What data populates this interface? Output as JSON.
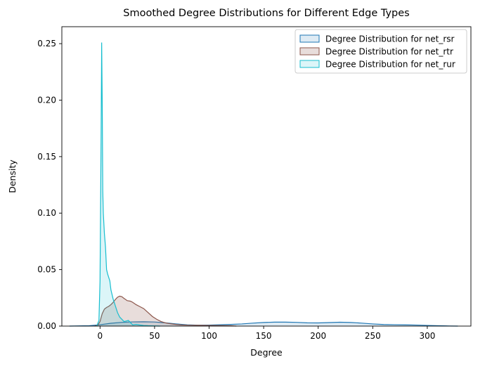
{
  "chart_data": {
    "type": "area",
    "title": "Smoothed Degree Distributions for Different Edge Types",
    "xlabel": "Degree",
    "ylabel": "Density",
    "xlim": [
      -35,
      340
    ],
    "ylim": [
      0,
      0.265
    ],
    "xticks": [
      0,
      50,
      100,
      150,
      200,
      250,
      300
    ],
    "yticks": [
      0.0,
      0.05,
      0.1,
      0.15,
      0.2,
      0.25
    ],
    "ytick_labels": [
      "0.00",
      "0.05",
      "0.10",
      "0.15",
      "0.20",
      "0.25"
    ],
    "grid": false,
    "legend_position": "top-right",
    "series": [
      {
        "name": "Degree Distribution for net_rsr",
        "color": "#1f77b4",
        "fill_opacity": 0.15,
        "x": [
          -28,
          -10,
          0,
          10,
          20,
          30,
          40,
          50,
          60,
          70,
          80,
          90,
          100,
          110,
          120,
          130,
          140,
          150,
          160,
          170,
          180,
          190,
          200,
          210,
          220,
          230,
          240,
          250,
          260,
          270,
          280,
          290,
          300,
          310,
          320,
          328
        ],
        "y": [
          0.0,
          0.0003,
          0.0012,
          0.0025,
          0.0033,
          0.0037,
          0.0038,
          0.0036,
          0.0029,
          0.0019,
          0.0011,
          0.0008,
          0.0009,
          0.0012,
          0.0015,
          0.0019,
          0.0026,
          0.0032,
          0.0035,
          0.0035,
          0.0033,
          0.0029,
          0.0028,
          0.0031,
          0.0034,
          0.0032,
          0.0026,
          0.0019,
          0.0014,
          0.0012,
          0.0011,
          0.0009,
          0.0006,
          0.0003,
          0.0001,
          0.0
        ]
      },
      {
        "name": "Degree Distribution for net_rtr",
        "color": "#8c564b",
        "fill_opacity": 0.2,
        "x": [
          -5,
          -2,
          0,
          2,
          4,
          6,
          8,
          10,
          12,
          14,
          16,
          18,
          20,
          22,
          25,
          28,
          30,
          33,
          36,
          40,
          44,
          48,
          52,
          56,
          60,
          65,
          70,
          75,
          80,
          90,
          100,
          110,
          120,
          125
        ],
        "y": [
          0.0,
          0.0008,
          0.004,
          0.011,
          0.015,
          0.0165,
          0.0175,
          0.019,
          0.021,
          0.0235,
          0.0255,
          0.0265,
          0.026,
          0.0245,
          0.0225,
          0.022,
          0.021,
          0.019,
          0.0175,
          0.0155,
          0.012,
          0.0085,
          0.006,
          0.004,
          0.0028,
          0.002,
          0.0014,
          0.001,
          0.0008,
          0.0007,
          0.0006,
          0.0005,
          0.0003,
          0.0
        ]
      },
      {
        "name": "Degree Distribution for net_rur",
        "color": "#17becf",
        "fill_opacity": 0.15,
        "x": [
          -3,
          -1,
          0,
          1,
          1.5,
          2,
          2.5,
          3,
          4,
          5,
          6,
          7,
          8,
          9,
          10,
          12,
          14,
          16,
          18,
          20,
          22,
          24,
          26,
          28,
          30,
          33,
          36,
          40,
          44,
          48,
          52,
          55
        ],
        "y": [
          0.0,
          0.005,
          0.04,
          0.17,
          0.251,
          0.2,
          0.12,
          0.1,
          0.082,
          0.07,
          0.05,
          0.046,
          0.043,
          0.04,
          0.032,
          0.024,
          0.018,
          0.012,
          0.008,
          0.006,
          0.004,
          0.0045,
          0.005,
          0.003,
          0.001,
          0.0015,
          0.001,
          0.0005,
          0.0003,
          0.0002,
          0.0001,
          0.0
        ]
      }
    ]
  }
}
